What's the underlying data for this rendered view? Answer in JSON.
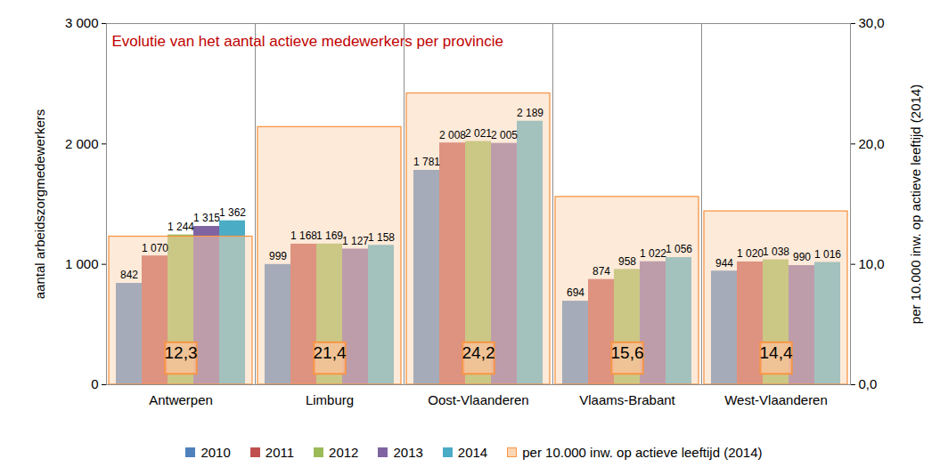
{
  "chart_data": {
    "type": "bar",
    "title": "Evolutie van het aantal actieve medewerkers per provincie",
    "y_label": "aantal arbeidszorgmedewerkers",
    "y2_label": "per 10.000 inw. op actieve leeftijd (2014)",
    "categories": [
      "Antwerpen",
      "Limburg",
      "Oost-Vlaanderen",
      "Vlaams-Brabant",
      "West-Vlaanderen"
    ],
    "series": [
      {
        "name": "2010",
        "color": "#4f81bd",
        "values": [
          842,
          999,
          1781,
          694,
          944
        ],
        "value_labels": [
          "842",
          "999",
          "1 781",
          "694",
          "944"
        ]
      },
      {
        "name": "2011",
        "color": "#c0504d",
        "values": [
          1070,
          1168,
          2008,
          874,
          1020
        ],
        "value_labels": [
          "1 070",
          "1 168",
          "2 008",
          "874",
          "1 020"
        ]
      },
      {
        "name": "2012",
        "color": "#9bbb59",
        "values": [
          1244,
          1169,
          2021,
          958,
          1038
        ],
        "value_labels": [
          "1 244",
          "1 169",
          "2 021",
          "958",
          "1 038"
        ]
      },
      {
        "name": "2013",
        "color": "#8064a2",
        "values": [
          1315,
          1127,
          2005,
          1022,
          990
        ],
        "value_labels": [
          "1 315",
          "1 127",
          "2 005",
          "1 022",
          "990"
        ]
      },
      {
        "name": "2014",
        "color": "#4bacc6",
        "values": [
          1362,
          1158,
          2189,
          1056,
          1016
        ],
        "value_labels": [
          "1 362",
          "1 158",
          "2 189",
          "1 056",
          "1 016"
        ]
      },
      {
        "name": "per 10.000 inw. op actieve leeftijd (2014)",
        "color": "#fcd5b4",
        "axis": "y2",
        "values": [
          12.3,
          21.4,
          24.2,
          15.6,
          14.4
        ],
        "value_labels": [
          "12,3",
          "21,4",
          "24,2",
          "15,6",
          "14,4"
        ]
      }
    ],
    "ylim": [
      0,
      3000
    ],
    "yticks": [
      0,
      {
        "value": 1000,
        "label": "1 000"
      },
      {
        "value": 2000,
        "label": "2 000"
      },
      {
        "value": 3000,
        "label": "3 000"
      }
    ],
    "y2lim": [
      0,
      30
    ],
    "y2ticks": [
      {
        "value": 0,
        "label": "0,0"
      },
      {
        "value": 10,
        "label": "10,0"
      },
      {
        "value": 20,
        "label": "20,0"
      },
      {
        "value": 30,
        "label": "30,0"
      }
    ],
    "grid": false,
    "data_labels": true,
    "legend": "bottom"
  }
}
